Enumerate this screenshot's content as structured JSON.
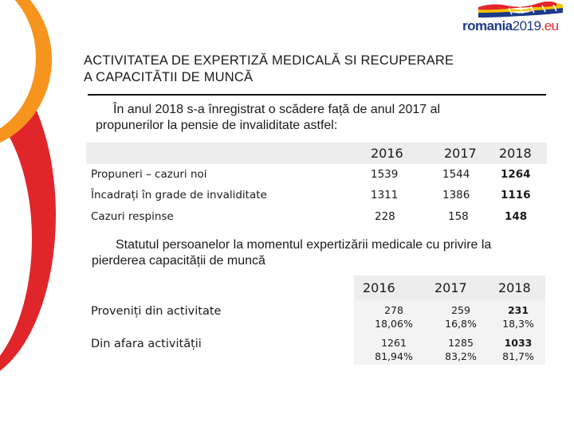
{
  "logo": {
    "name": "romania",
    "year": "2019",
    "domain": ".eu"
  },
  "title_line1": "ACTIVITATEA DE EXPERTIZĂ MEDICALĂ SI RECUPERARE",
  "title_line2": "A CAPACITĂTII DE MUNCĂ",
  "intro1_line1": "În anul 2018 s-a înregistrat o scădere față de anul 2017 al",
  "intro1_line2": "propunerilor la pensie de invaliditate astfel:",
  "table1": {
    "years": [
      "2016",
      "2017",
      "2018"
    ],
    "rows": [
      {
        "label": "Propuneri – cazuri noi",
        "values": [
          "1539",
          "1544",
          "1264"
        ]
      },
      {
        "label": "Încadrați în grade de invaliditate",
        "values": [
          "1311",
          "1386",
          "1116"
        ]
      },
      {
        "label": "Cazuri respinse",
        "values": [
          "228",
          "158",
          "148"
        ]
      }
    ]
  },
  "intro2_line1": "Statutul persoanelor la momentul expertizării medicale cu privire la",
  "intro2_line2": "pierderea capacității de muncă",
  "table2": {
    "years": [
      "2016",
      "2017",
      "2018"
    ],
    "rows": [
      {
        "label": "Proveniți din activitate",
        "values": [
          [
            "278",
            "18,06%"
          ],
          [
            "259",
            "16,8%"
          ],
          [
            "231",
            "18,3%"
          ]
        ]
      },
      {
        "label": "Din afara activității",
        "values": [
          [
            "1261",
            "81,94%"
          ],
          [
            "1285",
            "83,2%"
          ],
          [
            "1033",
            "81,7%"
          ]
        ]
      }
    ]
  }
}
